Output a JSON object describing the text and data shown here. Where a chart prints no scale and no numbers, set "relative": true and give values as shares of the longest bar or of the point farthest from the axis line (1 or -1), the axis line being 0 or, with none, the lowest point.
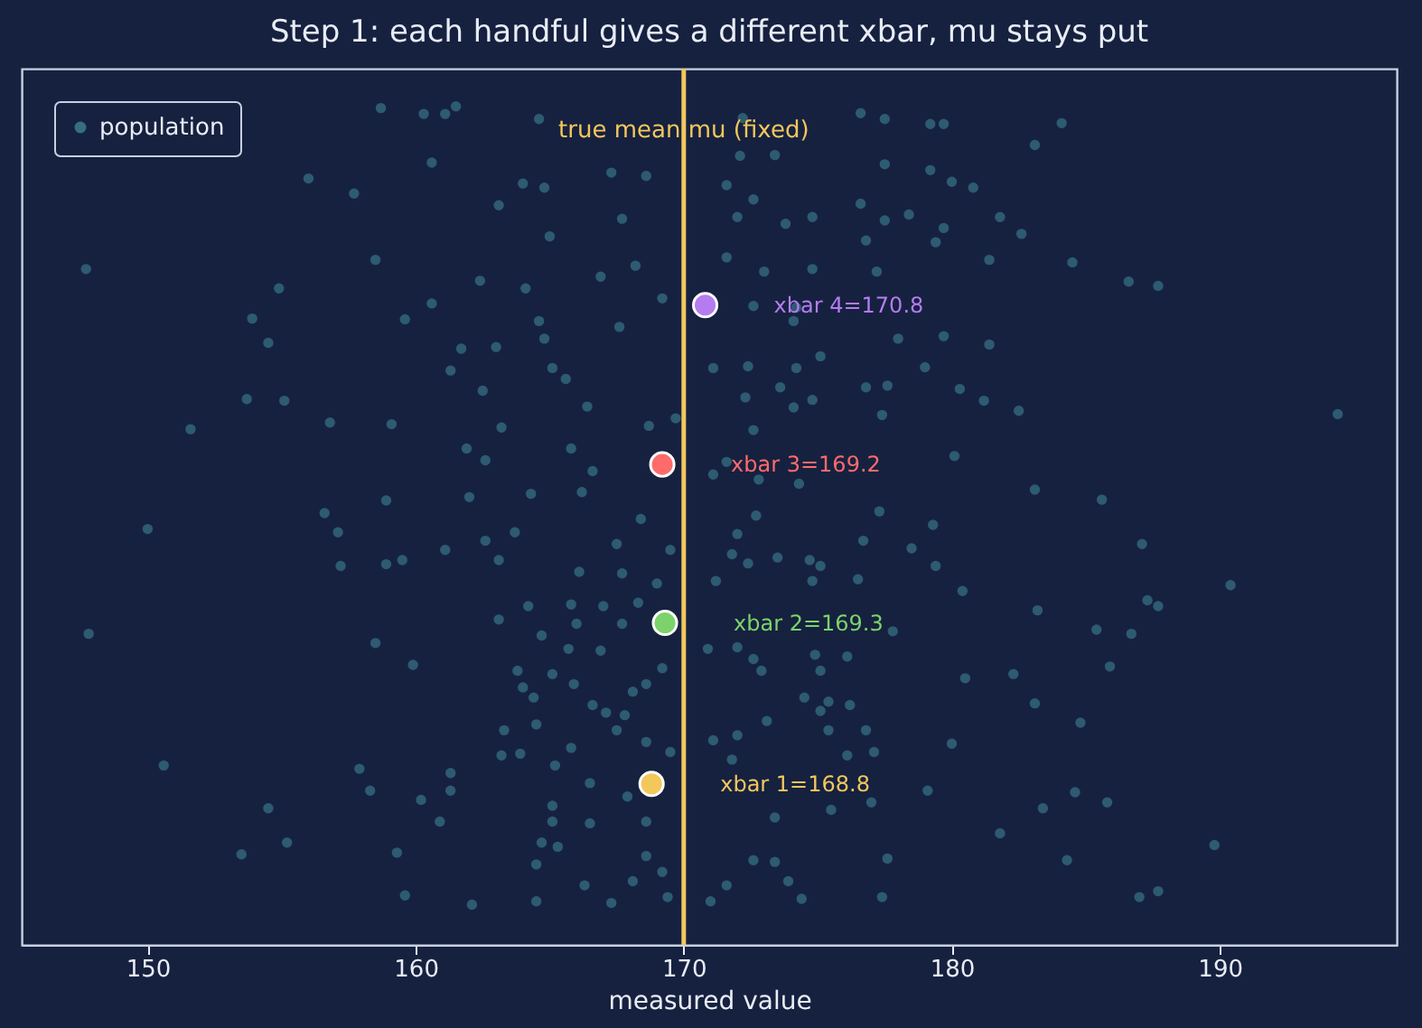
{
  "chart_data": {
    "type": "scatter",
    "title": "Step 1: each handful gives a different xbar, mu stays put",
    "xlabel": "measured value",
    "relative": true,
    "xlim": [
      145.3,
      196.6
    ],
    "xticks": [
      150,
      160,
      170,
      180,
      190
    ],
    "grid": false,
    "legend": "top left",
    "marker": "circle",
    "series": [
      {
        "name": "population",
        "color": "#4aa3ad",
        "x": [
          158.7,
          160.3,
          161.1,
          161.5,
          164.6,
          160.6,
          156.0,
          157.7,
          163.1,
          164.0,
          164.8,
          167.3,
          168.6,
          147.7,
          158.5,
          165.0,
          167.7,
          168.2,
          154.9,
          153.9,
          154.5,
          159.6,
          160.6,
          162.4,
          164.1,
          166.9,
          169.2,
          161.7,
          163.0,
          164.6,
          164.8,
          167.6,
          161.3,
          162.5,
          165.1,
          165.6,
          153.7,
          155.1,
          151.6,
          156.8,
          159.1,
          163.2,
          166.4,
          168.7,
          169.7,
          161.9,
          162.6,
          165.8,
          166.6,
          158.9,
          162.0,
          164.3,
          166.2,
          172.2,
          176.6,
          177.5,
          179.2,
          179.7,
          184.1,
          183.1,
          172.1,
          173.4,
          177.5,
          179.2,
          180.0,
          180.8,
          171.6,
          172.6,
          172.0,
          173.8,
          174.8,
          176.6,
          177.5,
          178.4,
          179.7,
          179.4,
          181.8,
          182.6,
          181.4,
          184.5,
          186.6,
          187.7,
          171.6,
          173.0,
          174.8,
          176.8,
          177.2,
          172.6,
          174.2,
          174.1,
          178.0,
          179.7,
          181.4,
          175.1,
          179.0,
          171.1,
          172.4,
          174.2,
          173.6,
          176.8,
          177.6,
          180.3,
          181.2,
          182.5,
          172.3,
          174.1,
          174.8,
          177.4,
          172.6,
          194.4,
          171.6,
          171.1,
          172.8,
          174.3,
          180.1,
          183.1,
          185.6,
          150.0,
          156.6,
          157.1,
          157.2,
          158.9,
          159.5,
          161.1,
          162.6,
          163.1,
          163.7,
          167.5,
          168.4,
          169.5,
          166.1,
          167.7,
          169.0,
          147.8,
          158.5,
          159.9,
          163.1,
          164.2,
          164.7,
          165.8,
          167.0,
          166.0,
          167.7,
          168.3,
          165.7,
          166.9,
          163.8,
          165.1,
          165.9,
          169.2,
          164.0,
          164.4,
          166.6,
          168.1,
          168.6,
          167.1,
          167.8,
          163.3,
          164.5,
          167.5,
          168.6,
          150.6,
          157.9,
          158.3,
          161.3,
          161.3,
          160.2,
          163.2,
          163.9,
          165.8,
          165.2,
          169.5,
          166.5,
          167.9,
          154.5,
          155.2,
          153.5,
          160.9,
          159.3,
          165.1,
          165.1,
          166.5,
          168.6,
          164.7,
          165.3,
          164.5,
          168.6,
          169.2,
          159.6,
          162.1,
          164.5,
          166.3,
          167.3,
          168.1,
          169.4,
          172.7,
          177.3,
          179.3,
          176.7,
          178.5,
          179.4,
          172.0,
          171.8,
          172.4,
          171.2,
          173.5,
          174.7,
          175.1,
          174.8,
          176.5,
          180.4,
          187.1,
          190.4,
          187.3,
          187.7,
          183.2,
          185.4,
          186.7,
          185.9,
          182.3,
          180.5,
          183.1,
          184.8,
          170.9,
          172.0,
          172.6,
          172.9,
          174.9,
          176.1,
          175.1,
          177.8,
          174.5,
          175.4,
          176.2,
          175.1,
          173.1,
          175.4,
          176.8,
          171.1,
          172.0,
          171.8,
          176.1,
          177.1,
          180.0,
          179.1,
          175.5,
          177.0,
          173.4,
          181.8,
          183.4,
          184.6,
          185.8,
          189.8,
          184.3,
          172.6,
          173.4,
          177.6,
          171.6,
          173.9,
          171.0,
          174.4,
          177.4,
          187.0,
          187.7
        ],
        "values": [
          0.998,
          0.991,
          0.991,
          1.0,
          0.985,
          0.933,
          0.914,
          0.896,
          0.882,
          0.908,
          0.903,
          0.921,
          0.917,
          0.806,
          0.817,
          0.845,
          0.866,
          0.81,
          0.783,
          0.747,
          0.718,
          0.746,
          0.765,
          0.792,
          0.783,
          0.797,
          0.771,
          0.711,
          0.713,
          0.744,
          0.723,
          0.737,
          0.685,
          0.661,
          0.688,
          0.675,
          0.651,
          0.649,
          0.615,
          0.623,
          0.621,
          0.617,
          0.642,
          0.619,
          0.628,
          0.592,
          0.578,
          0.592,
          0.565,
          0.53,
          0.534,
          0.538,
          0.54,
          0.986,
          0.992,
          0.985,
          0.979,
          0.979,
          0.98,
          0.954,
          0.941,
          0.942,
          0.931,
          0.924,
          0.91,
          0.903,
          0.906,
          0.889,
          0.868,
          0.86,
          0.868,
          0.884,
          0.864,
          0.871,
          0.855,
          0.838,
          0.868,
          0.848,
          0.817,
          0.814,
          0.791,
          0.786,
          0.82,
          0.803,
          0.806,
          0.84,
          0.803,
          0.762,
          0.76,
          0.744,
          0.723,
          0.726,
          0.716,
          0.702,
          0.689,
          0.688,
          0.69,
          0.688,
          0.665,
          0.665,
          0.667,
          0.663,
          0.649,
          0.637,
          0.653,
          0.641,
          0.65,
          0.632,
          0.614,
          0.633,
          0.576,
          0.561,
          0.555,
          0.55,
          0.583,
          0.543,
          0.531,
          0.496,
          0.515,
          0.492,
          0.452,
          0.454,
          0.459,
          0.471,
          0.482,
          0.459,
          0.492,
          0.478,
          0.508,
          0.471,
          0.445,
          0.443,
          0.431,
          0.371,
          0.36,
          0.334,
          0.388,
          0.404,
          0.369,
          0.406,
          0.404,
          0.383,
          0.383,
          0.408,
          0.353,
          0.351,
          0.327,
          0.323,
          0.311,
          0.33,
          0.307,
          0.295,
          0.286,
          0.302,
          0.311,
          0.277,
          0.274,
          0.256,
          0.263,
          0.256,
          0.242,
          0.214,
          0.21,
          0.184,
          0.205,
          0.184,
          0.173,
          0.226,
          0.228,
          0.235,
          0.214,
          0.23,
          0.193,
          0.177,
          0.163,
          0.122,
          0.108,
          0.147,
          0.11,
          0.166,
          0.147,
          0.145,
          0.147,
          0.122,
          0.117,
          0.096,
          0.106,
          0.087,
          0.059,
          0.048,
          0.052,
          0.071,
          0.05,
          0.076,
          0.057,
          0.512,
          0.517,
          0.501,
          0.482,
          0.473,
          0.452,
          0.49,
          0.466,
          0.455,
          0.434,
          0.462,
          0.459,
          0.452,
          0.434,
          0.436,
          0.422,
          0.478,
          0.429,
          0.411,
          0.404,
          0.399,
          0.376,
          0.371,
          0.332,
          0.323,
          0.318,
          0.288,
          0.265,
          0.353,
          0.355,
          0.341,
          0.327,
          0.346,
          0.344,
          0.327,
          0.374,
          0.295,
          0.29,
          0.286,
          0.279,
          0.267,
          0.256,
          0.256,
          0.244,
          0.25,
          0.221,
          0.226,
          0.23,
          0.24,
          0.184,
          0.161,
          0.17,
          0.152,
          0.133,
          0.163,
          0.182,
          0.17,
          0.119,
          0.101,
          0.101,
          0.099,
          0.103,
          0.071,
          0.076,
          0.052,
          0.055,
          0.057,
          0.057,
          0.064
        ]
      },
      {
        "colors": [
          "#f2c75c",
          "#7dd36b",
          "#ff6b6b",
          "#b57cf0"
        ],
        "x": [
          168.8,
          169.3,
          169.2,
          170.8
        ],
        "values": [
          0.192,
          0.384,
          0.573,
          0.763
        ]
      }
    ],
    "ref_lines": [
      {
        "axis": "x",
        "value": 170,
        "label": "true mean mu (fixed)",
        "color": "#f2c75c"
      }
    ],
    "annotations": [
      "xbar 1=168.8",
      "xbar 2=169.3",
      "xbar 3=169.2",
      "xbar 4=170.8"
    ]
  }
}
